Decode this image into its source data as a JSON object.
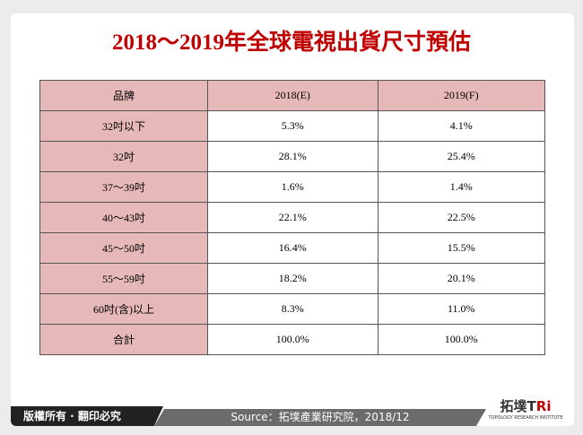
{
  "title": "2018～2019年全球電視出貨尺寸預估",
  "table": {
    "headers": [
      "品牌",
      "2018(E)",
      "2019(F)"
    ],
    "rows": [
      [
        "32吋以下",
        "5.3%",
        "4.1%"
      ],
      [
        "32吋",
        "28.1%",
        "25.4%"
      ],
      [
        "37～39吋",
        "1.6%",
        "1.4%"
      ],
      [
        "40～43吋",
        "22.1%",
        "22.5%"
      ],
      [
        "45～50吋",
        "16.4%",
        "15.5%"
      ],
      [
        "55～59吋",
        "18.2%",
        "20.1%"
      ],
      [
        "60吋(含)以上",
        "8.3%",
        "11.0%"
      ],
      [
        "合計",
        "100.0%",
        "100.0%"
      ]
    ]
  },
  "footer": {
    "copyright": "版權所有 · 翻印必究",
    "source": "Source：拓墣產業研究院，2018/12",
    "logo_text": "拓墣TRi",
    "logo_sub": "TOPOLOGY RESEARCH INSTITUTE"
  },
  "colors": {
    "title": "#c00000",
    "header_fill": "#e6b9b8"
  }
}
